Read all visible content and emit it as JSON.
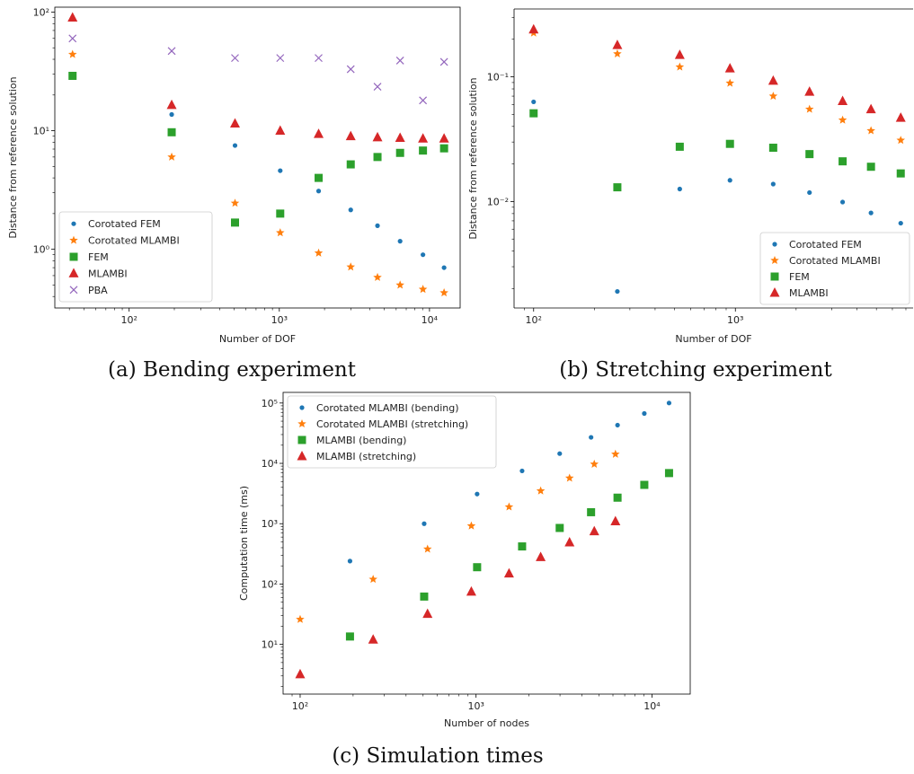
{
  "colors": {
    "blue": "#1f77b4",
    "orange": "#ff7f0e",
    "green": "#2ca02c",
    "red": "#d62728",
    "purple": "#9467bd"
  },
  "chart_data": [
    {
      "type": "scatter",
      "caption": "(a) Bending experiment",
      "xlabel": "Number of DOF",
      "ylabel": "Distance from reference solution",
      "xscale": "log",
      "yscale": "log",
      "xlim": [
        32,
        16000
      ],
      "ylim": [
        0.32,
        110
      ],
      "xticks": [
        {
          "value": 100,
          "label": "10²"
        },
        {
          "value": 1000,
          "label": "10³"
        },
        {
          "value": 10000,
          "label": "10⁴"
        }
      ],
      "yticks": [
        {
          "value": 1,
          "label": "10⁰"
        },
        {
          "value": 10,
          "label": "10¹"
        },
        {
          "value": 100,
          "label": "10²"
        }
      ],
      "legend_position": "lower-left",
      "series": [
        {
          "name": "Corotated FEM",
          "marker": "dot",
          "color": "#1f77b4",
          "x": [
            42,
            192,
            507,
            1014,
            1827,
            2989,
            4506,
            6372,
            9047,
            12507
          ],
          "y": [
            29,
            13.7,
            7.5,
            4.6,
            3.1,
            2.15,
            1.58,
            1.17,
            0.9,
            0.7
          ]
        },
        {
          "name": "Corotated MLAMBI",
          "marker": "star",
          "color": "#ff7f0e",
          "x": [
            42,
            192,
            507,
            1014,
            1827,
            2989,
            4506,
            6372,
            9047,
            12507
          ],
          "y": [
            44,
            6.0,
            2.45,
            1.38,
            0.93,
            0.71,
            0.58,
            0.5,
            0.46,
            0.43
          ]
        },
        {
          "name": "FEM",
          "marker": "square",
          "color": "#2ca02c",
          "x": [
            42,
            192,
            507,
            1014,
            1827,
            2989,
            4506,
            6372,
            9047,
            12507
          ],
          "y": [
            29,
            9.7,
            1.68,
            2.0,
            4.0,
            5.2,
            6.0,
            6.5,
            6.8,
            7.1
          ]
        },
        {
          "name": "MLAMBI",
          "marker": "triangle",
          "color": "#d62728",
          "x": [
            42,
            192,
            507,
            1014,
            1827,
            2989,
            4506,
            6372,
            9047,
            12507
          ],
          "y": [
            90,
            16.5,
            11.5,
            10.0,
            9.4,
            9.0,
            8.8,
            8.7,
            8.6,
            8.6
          ]
        },
        {
          "name": "PBA",
          "marker": "x",
          "color": "#9467bd",
          "x": [
            42,
            192,
            507,
            1014,
            1827,
            2989,
            4506,
            6372,
            9047,
            12507
          ],
          "y": [
            60,
            47,
            41,
            41,
            41,
            33,
            23.5,
            39,
            18,
            38
          ]
        }
      ]
    },
    {
      "type": "scatter",
      "caption": "(b) Stretching experiment",
      "xlabel": "Number of DOF",
      "ylabel": "Distance from reference solution",
      "xscale": "log",
      "yscale": "log",
      "xlim": [
        80,
        7600
      ],
      "ylim": [
        0.0014,
        0.35
      ],
      "xticks": [
        {
          "value": 100,
          "label": "10²"
        },
        {
          "value": 1000,
          "label": "10³"
        }
      ],
      "yticks": [
        {
          "value": 0.01,
          "label": "10⁻²"
        },
        {
          "value": 0.1,
          "label": "10⁻¹"
        }
      ],
      "legend_position": "lower-right",
      "series": [
        {
          "name": "Corotated FEM",
          "marker": "dot",
          "color": "#1f77b4",
          "x": [
            100,
            260,
            530,
            940,
            1540,
            2330,
            3400,
            4700,
            6600
          ],
          "y": [
            0.063,
            0.0019,
            0.0126,
            0.0148,
            0.0138,
            0.0118,
            0.0099,
            0.0081,
            0.0067
          ]
        },
        {
          "name": "Corotated MLAMBI",
          "marker": "star",
          "color": "#ff7f0e",
          "x": [
            100,
            260,
            530,
            940,
            1540,
            2330,
            3400,
            4700,
            6600
          ],
          "y": [
            0.225,
            0.153,
            0.12,
            0.089,
            0.07,
            0.055,
            0.045,
            0.037,
            0.031
          ]
        },
        {
          "name": "FEM",
          "marker": "square",
          "color": "#2ca02c",
          "x": [
            100,
            260,
            530,
            940,
            1540,
            2330,
            3400,
            4700,
            6600
          ],
          "y": [
            0.051,
            0.013,
            0.0275,
            0.029,
            0.027,
            0.024,
            0.021,
            0.019,
            0.0168
          ]
        },
        {
          "name": "MLAMBI",
          "marker": "triangle",
          "color": "#d62728",
          "x": [
            100,
            260,
            530,
            940,
            1540,
            2330,
            3400,
            4700,
            6600
          ],
          "y": [
            0.24,
            0.18,
            0.15,
            0.117,
            0.093,
            0.076,
            0.064,
            0.055,
            0.047
          ]
        }
      ]
    },
    {
      "type": "scatter",
      "caption": "(c) Simulation times",
      "xlabel": "Number of nodes",
      "ylabel": "Computation time (ms)",
      "xscale": "log",
      "yscale": "log",
      "xlim": [
        80,
        16500
      ],
      "ylim": [
        1.5,
        150000
      ],
      "xticks": [
        {
          "value": 100,
          "label": "10²"
        },
        {
          "value": 1000,
          "label": "10³"
        },
        {
          "value": 10000,
          "label": "10⁴"
        }
      ],
      "yticks": [
        {
          "value": 10,
          "label": "10¹"
        },
        {
          "value": 100,
          "label": "10²"
        },
        {
          "value": 1000,
          "label": "10³"
        },
        {
          "value": 10000,
          "label": "10⁴"
        },
        {
          "value": 100000,
          "label": "10⁵"
        }
      ],
      "legend_position": "top-left",
      "series": [
        {
          "name": "Corotated MLAMBI (bending)",
          "marker": "dot",
          "color": "#1f77b4",
          "x": [
            192,
            507,
            1014,
            1827,
            2989,
            4506,
            6372,
            9047,
            12507
          ],
          "y": [
            240,
            1000,
            3100,
            7500,
            14500,
            27000,
            43000,
            67000,
            100000
          ]
        },
        {
          "name": "Corotated MLAMBI (stretching)",
          "marker": "star",
          "color": "#ff7f0e",
          "x": [
            100,
            260,
            530,
            940,
            1540,
            2330,
            3400,
            4700,
            6200
          ],
          "y": [
            26,
            120,
            380,
            920,
            1900,
            3500,
            5700,
            9700,
            14200
          ]
        },
        {
          "name": "MLAMBI (bending)",
          "marker": "square",
          "color": "#2ca02c",
          "x": [
            192,
            507,
            1014,
            1827,
            2989,
            4506,
            6372,
            9047,
            12507
          ],
          "y": [
            13.5,
            62,
            190,
            420,
            850,
            1550,
            2700,
            4400,
            6900
          ]
        },
        {
          "name": "MLAMBI (stretching)",
          "marker": "triangle",
          "color": "#d62728",
          "x": [
            100,
            260,
            530,
            940,
            1540,
            2330,
            3400,
            4700,
            6200
          ],
          "y": [
            3.2,
            12,
            32,
            75,
            150,
            280,
            490,
            750,
            1100
          ]
        }
      ]
    }
  ]
}
